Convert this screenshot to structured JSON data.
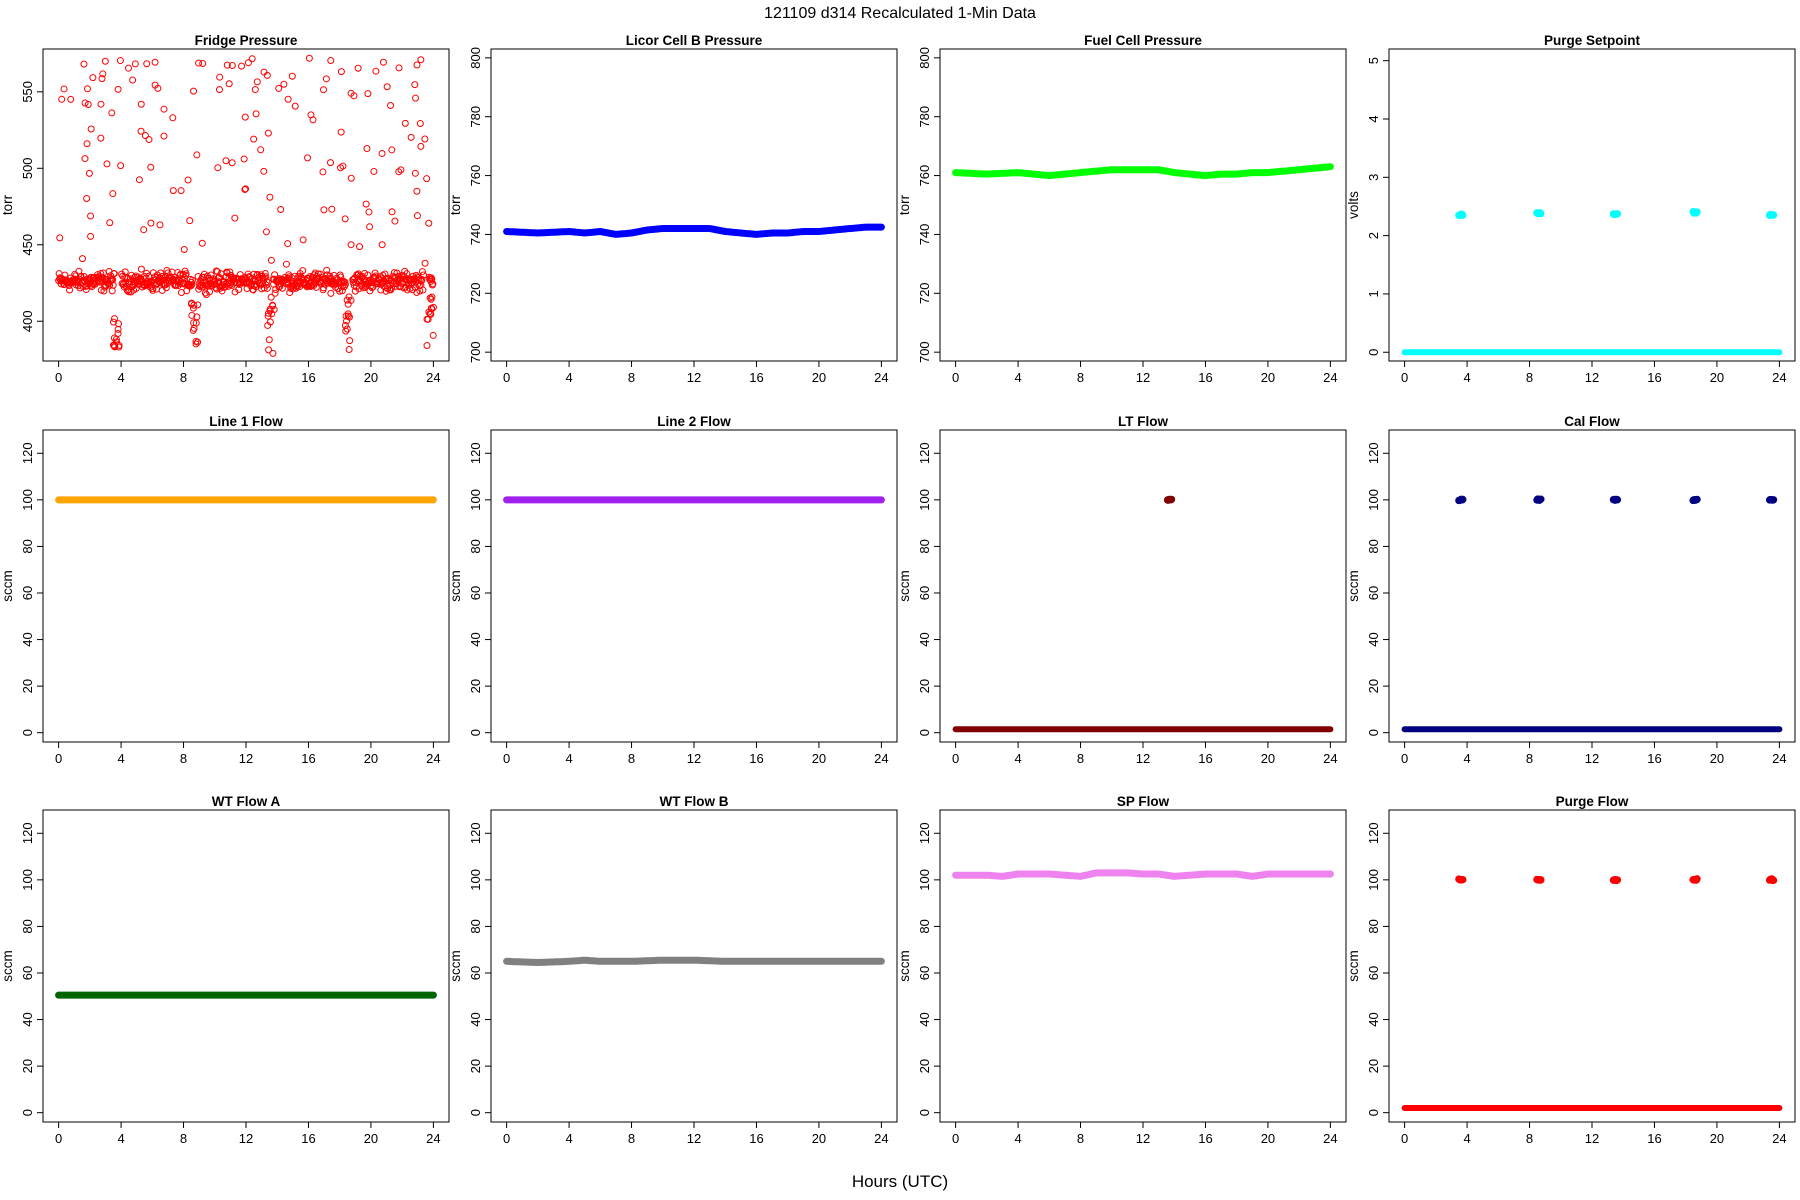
{
  "figure": {
    "title": "121109   d314   Recalculated 1-Min Data",
    "xlabel": "Hours (UTC)"
  },
  "chart_data": [
    {
      "type": "scatter",
      "title": "Fridge Pressure",
      "ylabel": "torr",
      "color": "#ff0000",
      "xlim": [
        -1,
        25
      ],
      "ylim": [
        374,
        578
      ],
      "xticks": [
        0,
        4,
        8,
        12,
        16,
        20,
        24
      ],
      "yticks": [
        400,
        450,
        500,
        550
      ],
      "style": "open",
      "band": {
        "center": 426,
        "spread": 9,
        "gaps": [
          [
            3.6,
            4.0
          ],
          [
            8.6,
            8.9
          ],
          [
            13.4,
            13.7
          ],
          [
            18.4,
            18.8
          ],
          [
            23.4,
            23.7
          ]
        ]
      },
      "dips": [
        {
          "at": 3.6,
          "to": 380
        },
        {
          "at": 8.6,
          "to": 384
        },
        {
          "at": 13.5,
          "to": 378
        },
        {
          "at": 18.5,
          "to": 381
        },
        {
          "at": 23.7,
          "to": 384
        }
      ],
      "scatter_range": [
        435,
        572
      ]
    },
    {
      "type": "line",
      "title": "Licor Cell B Pressure",
      "ylabel": "torr",
      "color": "#0000ff",
      "xlim": [
        -1,
        25
      ],
      "ylim": [
        697,
        803
      ],
      "xticks": [
        0,
        4,
        8,
        12,
        16,
        20,
        24
      ],
      "yticks": [
        700,
        720,
        740,
        760,
        780,
        800
      ],
      "style": "thick",
      "x": [
        0,
        2,
        4,
        5,
        6,
        7,
        8,
        9,
        10,
        11,
        12,
        13,
        14,
        15,
        16,
        17,
        18,
        19,
        20,
        21,
        22,
        23,
        24
      ],
      "y": [
        741,
        740.5,
        741,
        740.5,
        741,
        740,
        740.5,
        741.5,
        742,
        742,
        742,
        742,
        741,
        740.5,
        740,
        740.5,
        740.5,
        741,
        741,
        741.5,
        742,
        742.5,
        742.5
      ]
    },
    {
      "type": "line",
      "title": "Fuel Cell Pressure",
      "ylabel": "torr",
      "color": "#00ff00",
      "xlim": [
        -1,
        25
      ],
      "ylim": [
        697,
        803
      ],
      "xticks": [
        0,
        4,
        8,
        12,
        16,
        20,
        24
      ],
      "yticks": [
        700,
        720,
        740,
        760,
        780,
        800
      ],
      "style": "thick",
      "x": [
        0,
        2,
        4,
        5,
        6,
        7,
        8,
        9,
        10,
        11,
        12,
        13,
        14,
        15,
        16,
        17,
        18,
        19,
        20,
        21,
        22,
        23,
        24
      ],
      "y": [
        761,
        760.5,
        761,
        760.5,
        760,
        760.5,
        761,
        761.5,
        762,
        762,
        762,
        762,
        761,
        760.5,
        760,
        760.5,
        760.5,
        761,
        761,
        761.5,
        762,
        762.5,
        763
      ]
    },
    {
      "type": "scatter",
      "title": "Purge Setpoint",
      "ylabel": "volts",
      "color": "#00ffff",
      "xlim": [
        -1,
        25
      ],
      "ylim": [
        -0.15,
        5.2
      ],
      "xticks": [
        0,
        4,
        8,
        12,
        16,
        20,
        24
      ],
      "yticks": [
        0,
        1,
        2,
        3,
        4,
        5
      ],
      "style": "baseline",
      "base": 0,
      "clusters": [
        {
          "x": 3.6,
          "y": 2.35
        },
        {
          "x": 8.6,
          "y": 2.38
        },
        {
          "x": 13.5,
          "y": 2.37
        },
        {
          "x": 18.6,
          "y": 2.4
        },
        {
          "x": 23.5,
          "y": 2.35
        }
      ]
    },
    {
      "type": "line",
      "title": "Line 1 Flow",
      "ylabel": "sccm",
      "color": "#ffa500",
      "xlim": [
        -1,
        25
      ],
      "ylim": [
        -4,
        130
      ],
      "xticks": [
        0,
        4,
        8,
        12,
        16,
        20,
        24
      ],
      "yticks": [
        0,
        20,
        40,
        60,
        80,
        100,
        120
      ],
      "style": "thick",
      "x": [
        0,
        24
      ],
      "y": [
        100,
        100
      ]
    },
    {
      "type": "line",
      "title": "Line 2 Flow",
      "ylabel": "sccm",
      "color": "#a020f0",
      "xlim": [
        -1,
        25
      ],
      "ylim": [
        -4,
        130
      ],
      "xticks": [
        0,
        4,
        8,
        12,
        16,
        20,
        24
      ],
      "yticks": [
        0,
        20,
        40,
        60,
        80,
        100,
        120
      ],
      "style": "thick",
      "x": [
        0,
        24
      ],
      "y": [
        100,
        100
      ]
    },
    {
      "type": "scatter",
      "title": "LT Flow",
      "ylabel": "sccm",
      "color": "#800000",
      "xlim": [
        -1,
        25
      ],
      "ylim": [
        -4,
        130
      ],
      "xticks": [
        0,
        4,
        8,
        12,
        16,
        20,
        24
      ],
      "yticks": [
        0,
        20,
        40,
        60,
        80,
        100,
        120
      ],
      "style": "baseline",
      "base": 1.5,
      "clusters": [
        {
          "x": 13.7,
          "y": 100
        }
      ]
    },
    {
      "type": "scatter",
      "title": "Cal Flow",
      "ylabel": "sccm",
      "color": "#000080",
      "xlim": [
        -1,
        25
      ],
      "ylim": [
        -4,
        130
      ],
      "xticks": [
        0,
        4,
        8,
        12,
        16,
        20,
        24
      ],
      "yticks": [
        0,
        20,
        40,
        60,
        80,
        100,
        120
      ],
      "style": "baseline",
      "base": 1.5,
      "clusters": [
        {
          "x": 3.6,
          "y": 100
        },
        {
          "x": 8.6,
          "y": 100
        },
        {
          "x": 13.5,
          "y": 100
        },
        {
          "x": 18.6,
          "y": 100
        },
        {
          "x": 23.5,
          "y": 100
        }
      ]
    },
    {
      "type": "line",
      "title": "WT Flow A",
      "ylabel": "sccm",
      "color": "#006400",
      "xlim": [
        -1,
        25
      ],
      "ylim": [
        -4,
        130
      ],
      "xticks": [
        0,
        4,
        8,
        12,
        16,
        20,
        24
      ],
      "yticks": [
        0,
        20,
        40,
        60,
        80,
        100,
        120
      ],
      "style": "thick",
      "x": [
        0,
        24
      ],
      "y": [
        50.5,
        50.5
      ]
    },
    {
      "type": "line",
      "title": "WT Flow B",
      "ylabel": "sccm",
      "color": "#808080",
      "xlim": [
        -1,
        25
      ],
      "ylim": [
        -4,
        130
      ],
      "xticks": [
        0,
        4,
        8,
        12,
        16,
        20,
        24
      ],
      "yticks": [
        0,
        20,
        40,
        60,
        80,
        100,
        120
      ],
      "style": "thick",
      "x": [
        0,
        2,
        4,
        5,
        6,
        8,
        10,
        12,
        14,
        16,
        18,
        20,
        22,
        24
      ],
      "y": [
        65,
        64.5,
        65,
        65.5,
        65,
        65,
        65.5,
        65.5,
        65,
        65,
        65,
        65,
        65,
        65
      ]
    },
    {
      "type": "line",
      "title": "SP Flow",
      "ylabel": "sccm",
      "color": "#ee82ee",
      "xlim": [
        -1,
        25
      ],
      "ylim": [
        -4,
        130
      ],
      "xticks": [
        0,
        4,
        8,
        12,
        16,
        20,
        24
      ],
      "yticks": [
        0,
        20,
        40,
        60,
        80,
        100,
        120
      ],
      "style": "thick",
      "x": [
        0,
        1,
        2,
        3,
        4,
        5,
        6,
        7,
        8,
        9,
        10,
        11,
        12,
        13,
        14,
        15,
        16,
        17,
        18,
        19,
        20,
        21,
        22,
        23,
        24
      ],
      "y": [
        102,
        102,
        102,
        101.5,
        102.5,
        102.5,
        102.5,
        102,
        101.5,
        103,
        103,
        103,
        102.5,
        102.5,
        101.5,
        102,
        102.5,
        102.5,
        102.5,
        101.5,
        102.5,
        102.5,
        102.5,
        102.5,
        102.5
      ]
    },
    {
      "type": "scatter",
      "title": "Purge Flow",
      "ylabel": "sccm",
      "color": "#ff0000",
      "xlim": [
        -1,
        25
      ],
      "ylim": [
        -4,
        130
      ],
      "xticks": [
        0,
        4,
        8,
        12,
        16,
        20,
        24
      ],
      "yticks": [
        0,
        20,
        40,
        60,
        80,
        100,
        120
      ],
      "style": "baseline",
      "base": 2,
      "clusters": [
        {
          "x": 3.6,
          "y": 100
        },
        {
          "x": 8.6,
          "y": 100
        },
        {
          "x": 13.5,
          "y": 100
        },
        {
          "x": 18.6,
          "y": 100
        },
        {
          "x": 23.5,
          "y": 100
        }
      ]
    }
  ]
}
